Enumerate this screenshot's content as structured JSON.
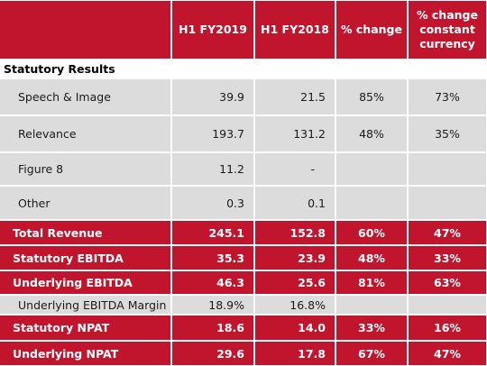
{
  "columns": [
    "",
    "H1 FY2019",
    "H1 FY2018",
    "% change",
    "% change constant currency"
  ],
  "section_title": "Statutory Results",
  "rows": [
    {
      "label": "Speech & Image",
      "fy2019": "39.9",
      "fy2018": "21.5",
      "change": "85%",
      "cc": "73%",
      "style": "grey"
    },
    {
      "label": "Relevance",
      "fy2019": "193.7",
      "fy2018": "131.2",
      "change": "48%",
      "cc": "35%",
      "style": "grey"
    },
    {
      "label": "Figure 8",
      "fy2019": "11.2",
      "fy2018": "-",
      "change": "",
      "cc": "",
      "style": "grey"
    },
    {
      "label": "Other",
      "fy2019": "0.3",
      "fy2018": "0.1",
      "change": "",
      "cc": "",
      "style": "grey"
    },
    {
      "label": "Total Revenue",
      "fy2019": "245.1",
      "fy2018": "152.8",
      "change": "60%",
      "cc": "47%",
      "style": "red"
    },
    {
      "label": "Statutory EBITDA",
      "fy2019": "35.3",
      "fy2018": "23.9",
      "change": "48%",
      "cc": "33%",
      "style": "red"
    },
    {
      "label": "Underlying EBITDA",
      "fy2019": "46.3",
      "fy2018": "25.6",
      "change": "81%",
      "cc": "63%",
      "style": "red"
    },
    {
      "label": "Underlying EBITDA Margin",
      "fy2019": "18.9%",
      "fy2018": "16.8%",
      "change": "",
      "cc": "",
      "style": "grey"
    },
    {
      "label": "Statutory NPAT",
      "fy2019": "18.6",
      "fy2018": "14.0",
      "change": "33%",
      "cc": "16%",
      "style": "red"
    },
    {
      "label": "Underlying NPAT",
      "fy2019": "29.6",
      "fy2018": "17.8",
      "change": "67%",
      "cc": "47%",
      "style": "red"
    }
  ],
  "colors": {
    "accent": "#c1152e",
    "grey": "#dcdcdc"
  }
}
